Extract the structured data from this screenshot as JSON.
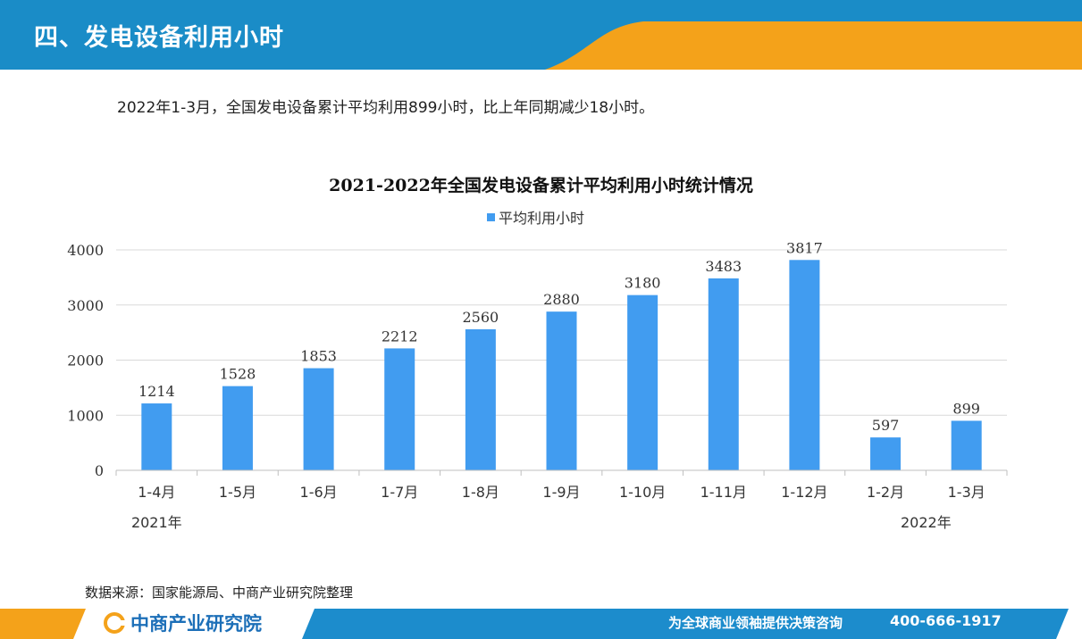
{
  "header": {
    "title": "四、发电设备利用小时"
  },
  "summary": "2022年1-3月，全国发电设备累计平均利用899小时，比上年同期减少18小时。",
  "chart_data": {
    "type": "bar",
    "title": "2021-2022年全国发电设备累计平均利用小时统计情况",
    "categories": [
      "1-4月",
      "1-5月",
      "1-6月",
      "1-7月",
      "1-8月",
      "1-9月",
      "1-10月",
      "1-11月",
      "1-12月",
      "1-2月",
      "1-3月"
    ],
    "year_labels": [
      {
        "text": "2021年",
        "category_index": 0
      },
      {
        "text": "2022年",
        "category_index": 9.5
      }
    ],
    "series": [
      {
        "name": "平均利用小时",
        "values": [
          1214,
          1528,
          1853,
          2212,
          2560,
          2880,
          3180,
          3483,
          3817,
          597,
          899
        ],
        "color": "#419cf0"
      }
    ],
    "yticks": [
      0,
      1000,
      2000,
      3000,
      4000
    ],
    "ylim": [
      0,
      4000
    ],
    "xlabel": "",
    "ylabel": "",
    "grid": true,
    "legend": "top-center",
    "data_labels": true
  },
  "footer": {
    "source": "数据来源：国家能源局、中商产业研究院整理",
    "brand": "中商产业研究院",
    "slogan": "为全球商业领袖提供决策咨询",
    "phone": "400-666-1917"
  },
  "colors": {
    "header_blue": "#1a8cc7",
    "accent_orange": "#f4a21a",
    "bar": "#419cf0",
    "footer_blue": "#1c8ccc"
  }
}
